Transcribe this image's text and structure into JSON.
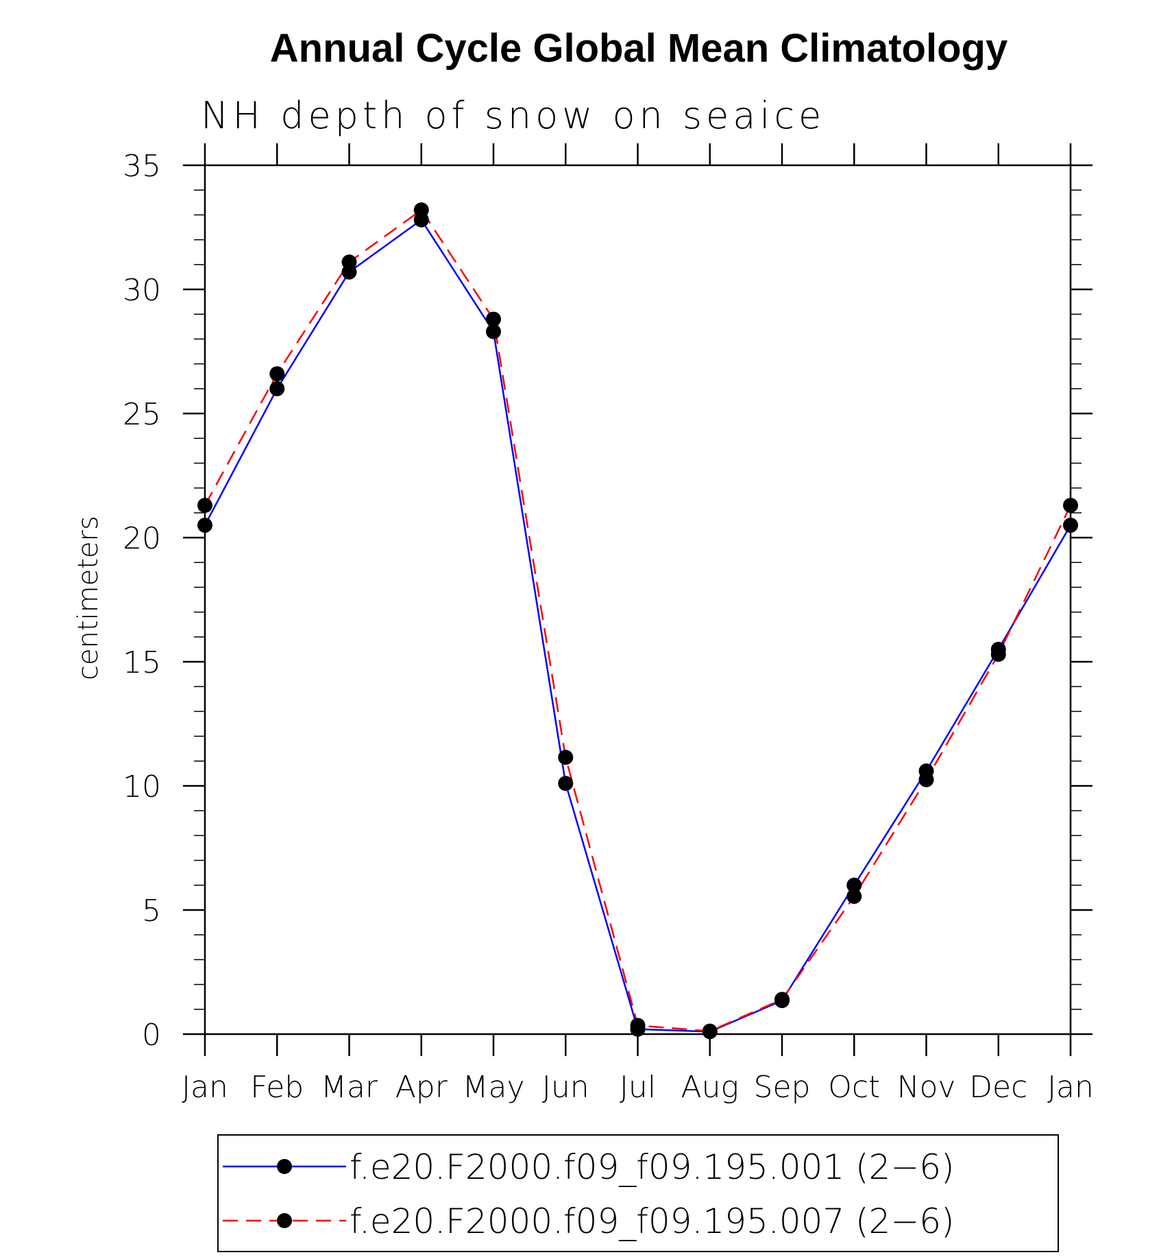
{
  "chart_data": {
    "type": "line",
    "title": "Annual Cycle Global Mean Climatology",
    "subtitle": "NH depth of snow on seaice",
    "ylabel": "centimeters",
    "xlabel": "",
    "categories": [
      "Jan",
      "Feb",
      "Mar",
      "Apr",
      "May",
      "Jun",
      "Jul",
      "Aug",
      "Sep",
      "Oct",
      "Nov",
      "Dec",
      "Jan"
    ],
    "ylim": [
      0,
      35
    ],
    "yticks": [
      "0",
      "5",
      "10",
      "15",
      "20",
      "25",
      "30",
      "35"
    ],
    "legend_position": "bottom",
    "series": [
      {
        "name": "f.e20.F2000.f09_f09.195.001 (2−6)",
        "color": "#0000ff",
        "style": "solid",
        "marker": "filled-circle",
        "values": [
          20.5,
          26.0,
          30.7,
          32.8,
          28.3,
          10.1,
          0.2,
          0.1,
          1.35,
          6.0,
          10.6,
          15.5,
          20.5
        ]
      },
      {
        "name": "f.e20.F2000.f09_f09.195.007 (2−6)",
        "color": "#ff0000",
        "style": "dashed",
        "marker": "filled-circle",
        "values": [
          21.3,
          26.6,
          31.1,
          33.2,
          28.8,
          11.15,
          0.35,
          0.12,
          1.4,
          5.55,
          10.25,
          15.3,
          21.3
        ]
      }
    ]
  }
}
